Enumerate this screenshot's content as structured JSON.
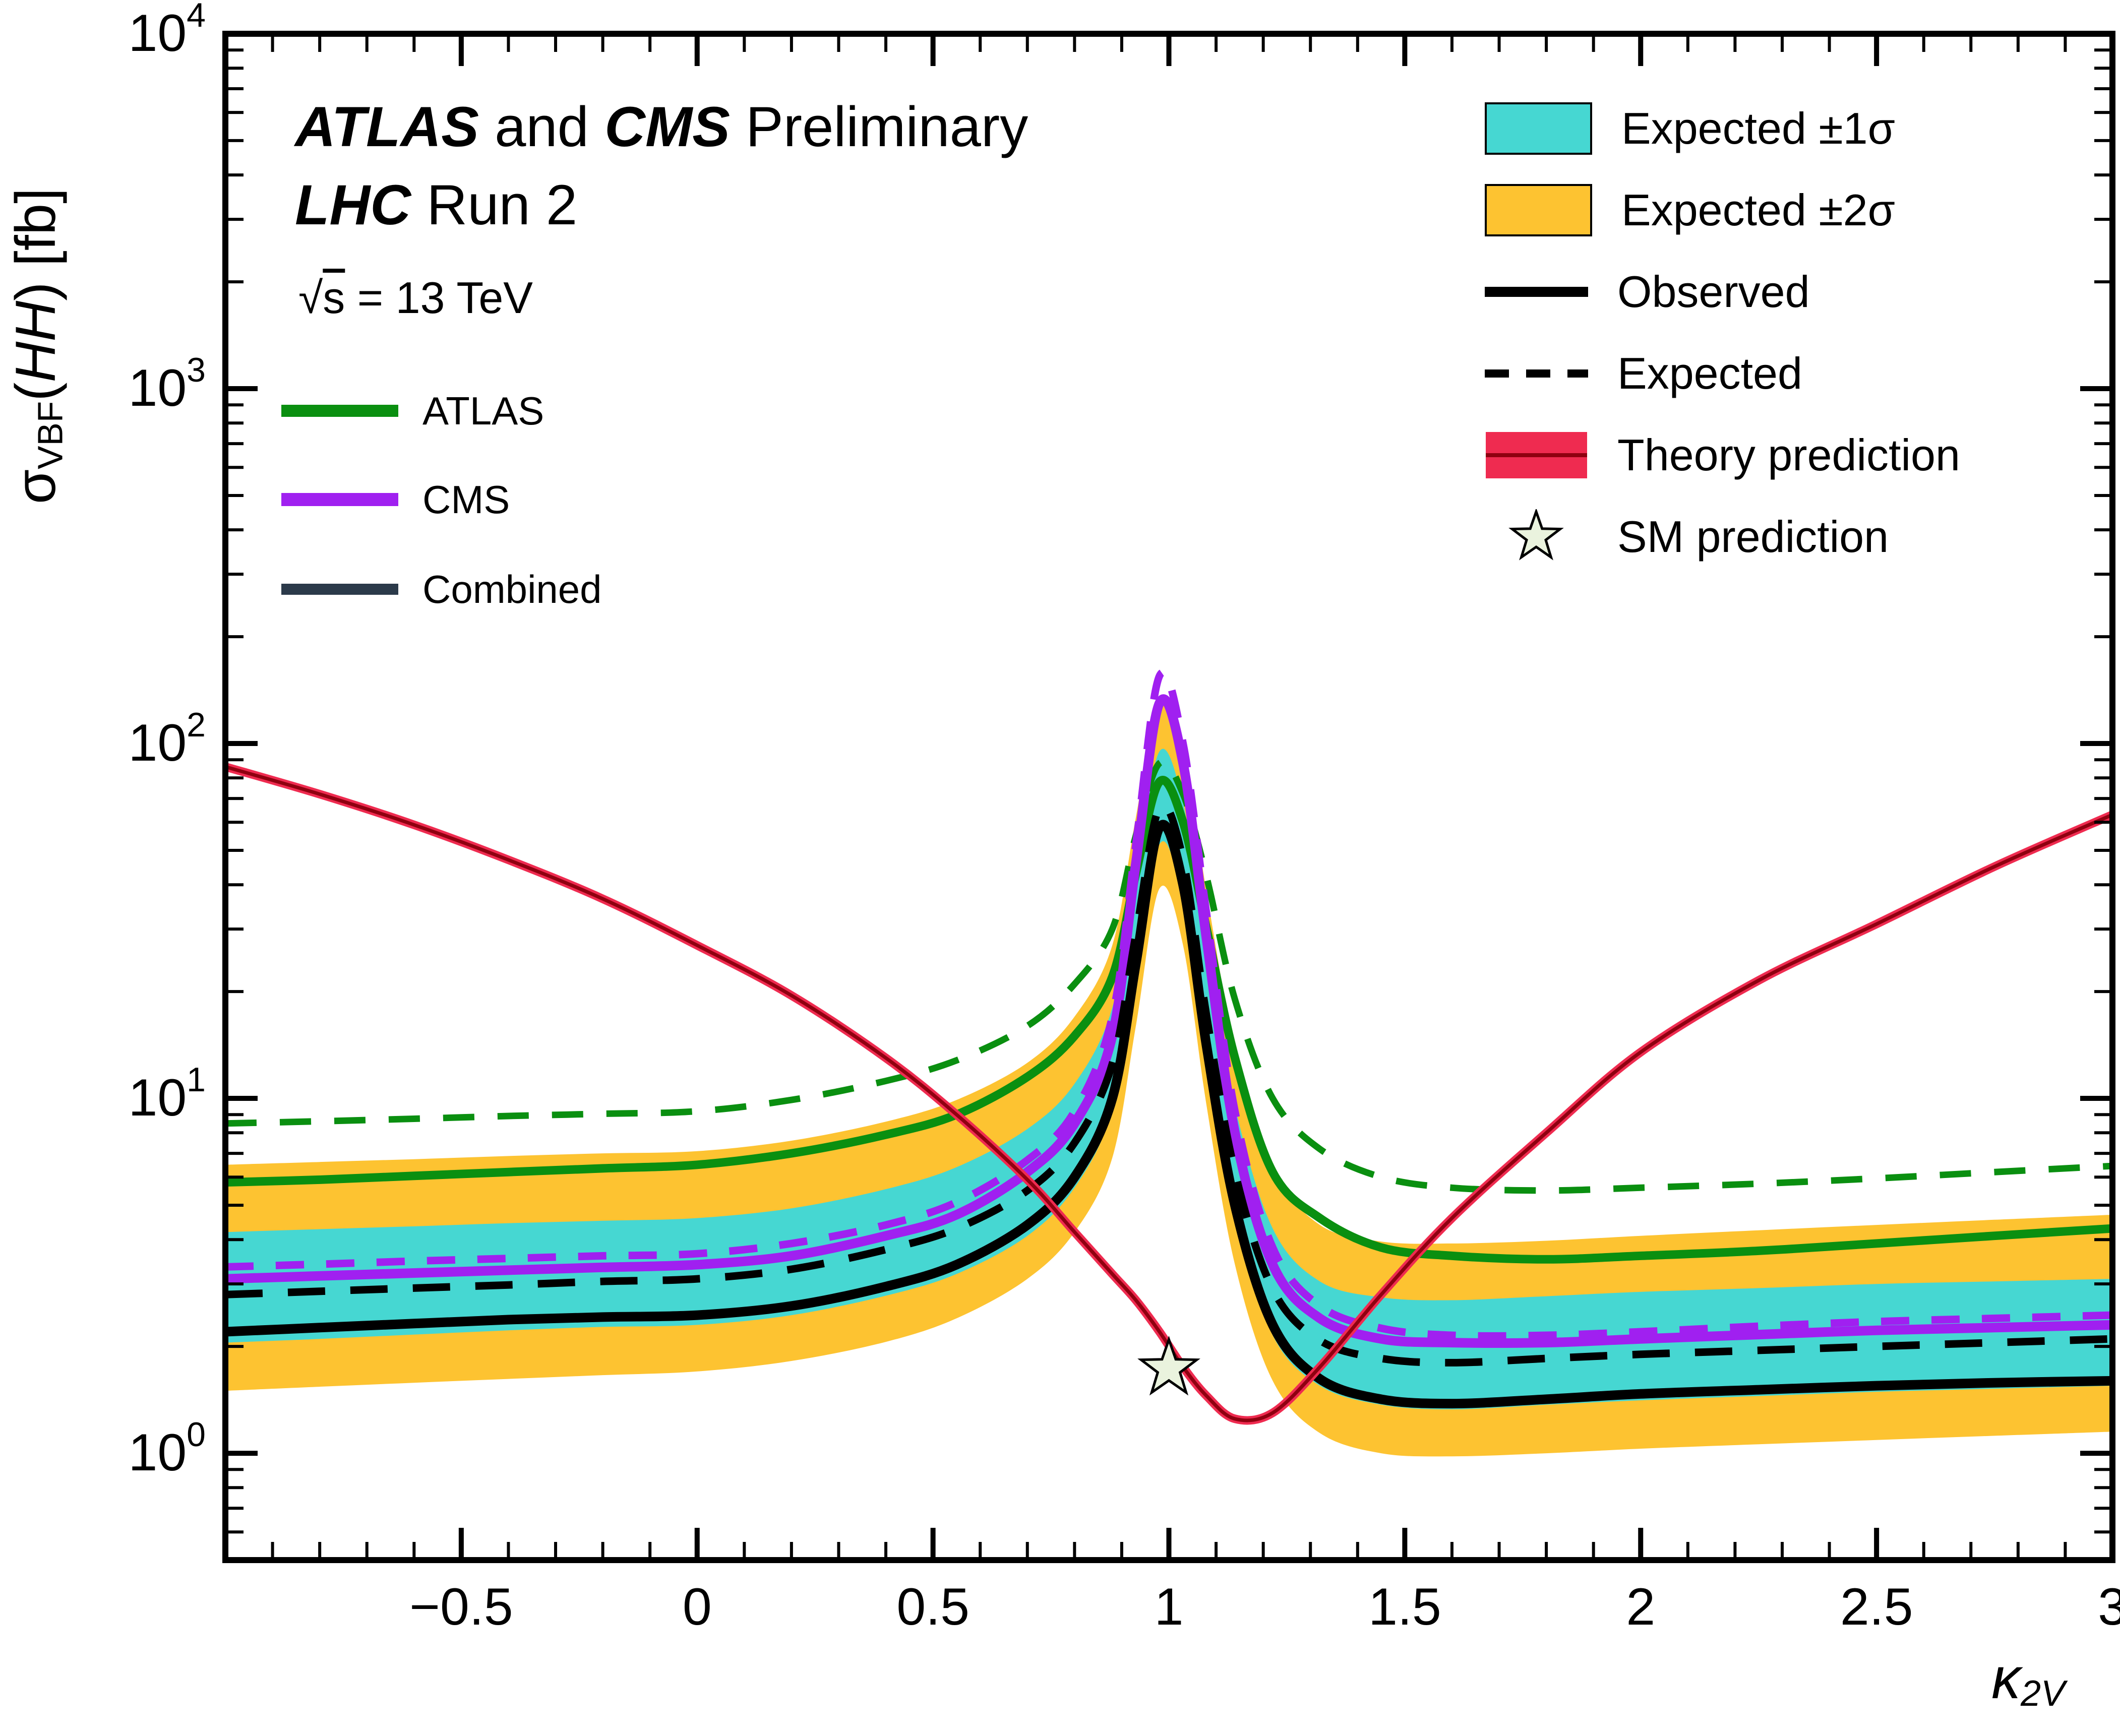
{
  "title": {
    "atlas": "ATLAS",
    "and": " and ",
    "cms": "CMS",
    "preliminary": " Preliminary",
    "lhc": "LHC",
    "run2": " Run 2",
    "sqrt_sign": "√",
    "s_char": "s",
    "energy_rest": " = 13 TeV"
  },
  "axes": {
    "y_label_sigma": "σ",
    "y_label_sub": "VBF",
    "y_label_open": "(",
    "y_label_hh": "HH",
    "y_label_close": ") [fb]",
    "x_label_kappa": "κ",
    "x_label_sub": "2V"
  },
  "legend_left": [
    {
      "label": "ATLAS",
      "color": "#0a8f10"
    },
    {
      "label": "CMS",
      "color": "#a020f0"
    },
    {
      "label": "Combined",
      "color": "#2b3a4a"
    }
  ],
  "legend_right": [
    {
      "label": "Expected ±1σ",
      "type": "band",
      "color": "#46d7d2"
    },
    {
      "label": "Expected ±2σ",
      "type": "band",
      "color": "#fdc331"
    },
    {
      "label": "Observed",
      "type": "line",
      "color": "#000000"
    },
    {
      "label": "Expected",
      "type": "dashed",
      "color": "#000000"
    },
    {
      "label": "Theory prediction",
      "type": "theory",
      "color": "#ef2b50"
    },
    {
      "label": "SM prediction",
      "type": "star",
      "color": "#eaf3de"
    }
  ],
  "chart_data": {
    "type": "line",
    "title": "ATLAS and CMS Preliminary LHC Run 2, √s = 13 TeV",
    "xlabel": "κ2V",
    "ylabel": "σVBF(HH) [fb]",
    "x_range": [
      -1,
      3
    ],
    "y_range": [
      0.5,
      10000
    ],
    "y_scale": "log",
    "x_major_ticks": [
      -0.5,
      0,
      0.5,
      1,
      1.5,
      2,
      2.5,
      3
    ],
    "x_major_tick_labels": [
      "−0.5",
      "0",
      "0.5",
      "1",
      "1.5",
      "2",
      "2.5",
      "3"
    ],
    "y_major_tick_exponents": [
      0,
      1,
      2,
      3,
      4
    ],
    "x_minor_step": 0.1,
    "grid": false,
    "x": [
      -1,
      -0.8,
      -0.6,
      -0.4,
      -0.2,
      0,
      0.2,
      0.4,
      0.55,
      0.7,
      0.8,
      0.88,
      0.93,
      0.98,
      1.03,
      1.08,
      1.14,
      1.22,
      1.32,
      1.45,
      1.6,
      1.8,
      2.0,
      2.25,
      2.5,
      2.75,
      3.0
    ],
    "series": [
      {
        "name": "expected_2sigma_up",
        "values": [
          6.5,
          6.62,
          6.74,
          6.88,
          7.0,
          7.1,
          7.6,
          8.6,
          9.9,
          12.6,
          17,
          27,
          62,
          135,
          98,
          38,
          14,
          6.4,
          4.4,
          3.95,
          3.9,
          3.97,
          4.1,
          4.25,
          4.4,
          4.55,
          4.7
        ]
      },
      {
        "name": "expected_2sigma_down",
        "values": [
          1.5,
          1.54,
          1.58,
          1.62,
          1.66,
          1.7,
          1.82,
          2.06,
          2.4,
          3.1,
          4.2,
          6.8,
          16,
          39,
          27,
          9.5,
          3.4,
          1.6,
          1.14,
          1.0,
          0.98,
          1.0,
          1.03,
          1.06,
          1.09,
          1.12,
          1.15
        ]
      },
      {
        "name": "expected_1sigma_up",
        "values": [
          4.2,
          4.28,
          4.36,
          4.45,
          4.52,
          4.6,
          4.9,
          5.55,
          6.4,
          8.2,
          11,
          18,
          43,
          95,
          68,
          26,
          9.5,
          4.3,
          3.05,
          2.75,
          2.7,
          2.77,
          2.85,
          2.92,
          3.0,
          3.05,
          3.1
        ]
      },
      {
        "name": "expected_1sigma_down",
        "values": [
          2.05,
          2.1,
          2.16,
          2.22,
          2.27,
          2.3,
          2.45,
          2.78,
          3.2,
          4.1,
          5.6,
          9.2,
          21,
          52,
          36,
          13,
          4.6,
          2.15,
          1.55,
          1.37,
          1.33,
          1.37,
          1.41,
          1.45,
          1.49,
          1.52,
          1.55
        ]
      },
      {
        "name": "atlas_expected",
        "values": [
          8.5,
          8.62,
          8.76,
          8.92,
          9.05,
          9.2,
          9.9,
          11.2,
          12.8,
          16,
          21,
          30,
          55,
          88,
          72,
          42,
          19,
          10.0,
          7.2,
          6.0,
          5.6,
          5.5,
          5.6,
          5.75,
          5.95,
          6.2,
          6.45
        ]
      },
      {
        "name": "atlas_observed",
        "values": [
          5.8,
          5.9,
          6.05,
          6.2,
          6.35,
          6.5,
          7.0,
          7.9,
          9.0,
          11.5,
          15,
          22,
          43,
          78,
          60,
          30,
          13,
          6.2,
          4.6,
          3.8,
          3.6,
          3.52,
          3.6,
          3.72,
          3.9,
          4.1,
          4.3
        ]
      },
      {
        "name": "cms_expected",
        "values": [
          3.35,
          3.41,
          3.48,
          3.54,
          3.6,
          3.65,
          3.9,
          4.4,
          5.1,
          6.7,
          9.2,
          17,
          52,
          155,
          100,
          33,
          9.2,
          3.8,
          2.6,
          2.25,
          2.15,
          2.15,
          2.2,
          2.28,
          2.35,
          2.4,
          2.45
        ]
      },
      {
        "name": "cms_observed",
        "values": [
          3.1,
          3.16,
          3.22,
          3.28,
          3.34,
          3.4,
          3.6,
          4.1,
          4.7,
          6.2,
          8.5,
          15,
          46,
          130,
          88,
          28,
          8.0,
          3.4,
          2.4,
          2.1,
          2.05,
          2.05,
          2.1,
          2.16,
          2.22,
          2.26,
          2.3
        ]
      },
      {
        "name": "combined_expected",
        "values": [
          2.8,
          2.86,
          2.92,
          2.98,
          3.05,
          3.1,
          3.3,
          3.75,
          4.3,
          5.5,
          7.5,
          12.5,
          29,
          66,
          47,
          17,
          6.2,
          2.9,
          2.08,
          1.85,
          1.8,
          1.85,
          1.9,
          1.95,
          2.0,
          2.05,
          2.1
        ]
      },
      {
        "name": "combined_observed",
        "values": [
          2.2,
          2.26,
          2.32,
          2.38,
          2.42,
          2.45,
          2.6,
          2.95,
          3.4,
          4.4,
          6.0,
          10,
          24,
          58,
          40,
          14,
          5.0,
          2.3,
          1.62,
          1.42,
          1.38,
          1.42,
          1.47,
          1.51,
          1.55,
          1.58,
          1.6
        ]
      },
      {
        "name": "theory_prediction",
        "values": [
          86,
          72,
          59,
          47,
          36.5,
          27,
          19.5,
          13.0,
          9.0,
          5.9,
          4.2,
          3.2,
          2.7,
          2.2,
          1.75,
          1.45,
          1.25,
          1.3,
          1.75,
          2.8,
          4.6,
          8.0,
          13.5,
          21.5,
          31,
          45,
          63
        ]
      }
    ],
    "sm_prediction_point": {
      "x": 1.0,
      "y": 1.73
    },
    "colors": {
      "band_1sigma": "#46d7d2",
      "band_2sigma": "#fdc331",
      "atlas": "#0a8f10",
      "cms": "#a020f0",
      "combined": "#000000",
      "theory_edge": "#ef2b50",
      "theory_core": "#8f0010",
      "star_fill": "#eaf3de"
    }
  }
}
